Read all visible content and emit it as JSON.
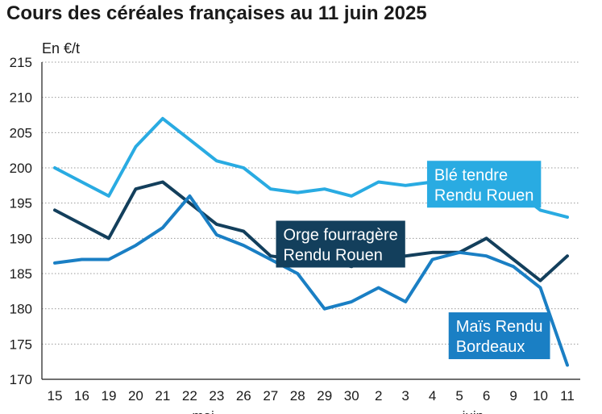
{
  "chart_data": {
    "type": "line",
    "title": "Cours des céréales françaises au 11 juin 2025",
    "ylabel": "En €/t",
    "ylim": [
      170,
      215
    ],
    "yticks": [
      170,
      175,
      180,
      185,
      190,
      195,
      200,
      205,
      210,
      215
    ],
    "grid": true,
    "categories": [
      "15",
      "16",
      "19",
      "20",
      "21",
      "22",
      "23",
      "26",
      "27",
      "28",
      "29",
      "30",
      "2",
      "3",
      "4",
      "5",
      "6",
      "9",
      "10",
      "11"
    ],
    "month_labels": [
      {
        "text": "mai",
        "index": 5.5
      },
      {
        "text": "juin",
        "index": 15.5
      }
    ],
    "series": [
      {
        "name": "Blé tendre Rendu Rouen",
        "label_lines": [
          "Blé tendre",
          "Rendu Rouen"
        ],
        "color": "#29abe2",
        "values": [
          200,
          198,
          196,
          203,
          207,
          204,
          201,
          200,
          197,
          196.5,
          197,
          196,
          198,
          197.5,
          198,
          198,
          200,
          197,
          194,
          193
        ],
        "label_anchor": {
          "index": 13.8,
          "value": 201
        }
      },
      {
        "name": "Orge fourragère Rendu Rouen",
        "label_lines": [
          "Orge fourragère",
          "Rendu Rouen"
        ],
        "color": "#133f5c",
        "values": [
          194,
          192,
          190,
          197,
          198,
          195,
          192,
          191,
          187.5,
          187,
          187,
          186,
          188,
          187.5,
          188,
          188,
          190,
          187,
          184,
          187.5
        ],
        "label_anchor": {
          "index": 8.2,
          "value": 192.5
        }
      },
      {
        "name": "Maïs Rendu Bordeaux",
        "label_lines": [
          "Maïs Rendu",
          "Bordeaux"
        ],
        "color": "#1a7fc4",
        "values": [
          186.5,
          187,
          187,
          189,
          191.5,
          196,
          190.5,
          189,
          187,
          185,
          180,
          181,
          183,
          181,
          187,
          188,
          187.5,
          186,
          183,
          172
        ],
        "label_anchor": {
          "index": 14.6,
          "value": 179.5
        }
      }
    ]
  }
}
